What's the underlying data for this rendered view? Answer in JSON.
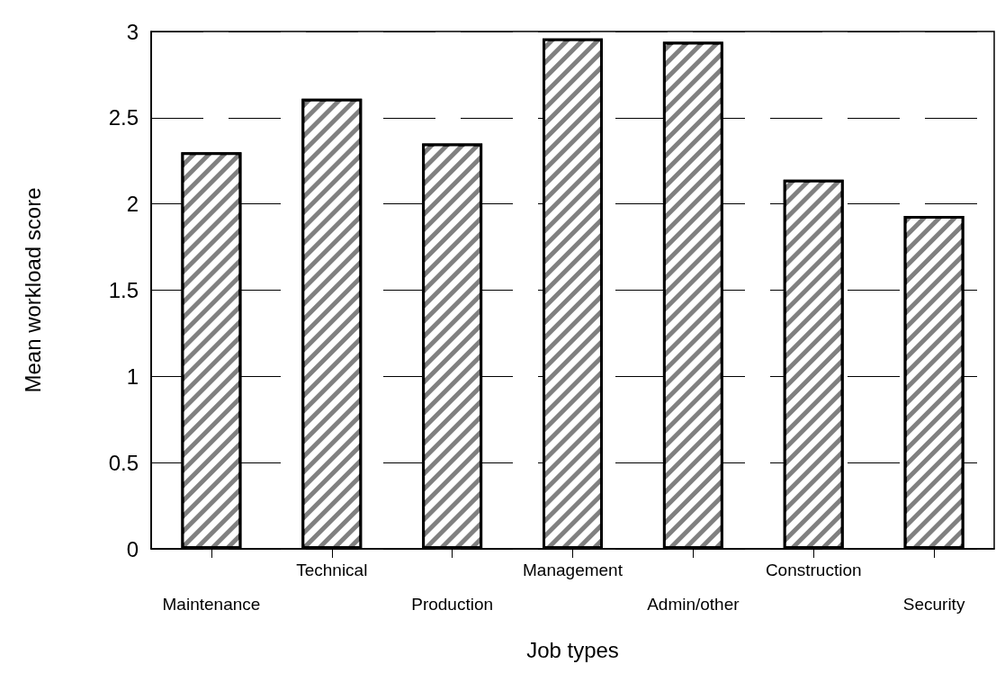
{
  "chart_data": {
    "type": "bar",
    "xlabel": "Job types",
    "ylabel": "Mean workload score",
    "categories": [
      "Maintenance",
      "Technical",
      "Production",
      "Management",
      "Admin/other",
      "Construction",
      "Security"
    ],
    "values": [
      2.3,
      2.61,
      2.35,
      2.96,
      2.94,
      2.14,
      1.93
    ],
    "color": "#808080",
    "ylim": [
      0,
      3
    ],
    "yticks": [
      0,
      0.5,
      1,
      1.5,
      2,
      2.5,
      3
    ],
    "grid": "y"
  }
}
